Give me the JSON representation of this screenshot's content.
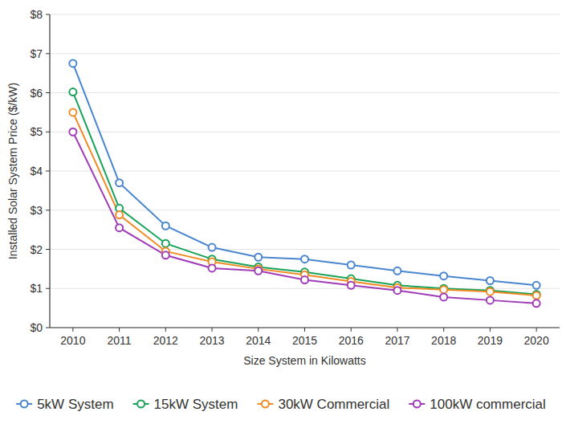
{
  "chart_data": {
    "type": "line",
    "x_label": "Size System in Kilowatts",
    "y_label": "Installed Solar System Price ($/kW)",
    "categories": [
      "2010",
      "2011",
      "2012",
      "2013",
      "2014",
      "2015",
      "2016",
      "2017",
      "2018",
      "2019",
      "2020"
    ],
    "series": [
      {
        "name": "5kW System",
        "color": "#4a86cf",
        "values": [
          6.75,
          3.7,
          2.6,
          2.05,
          1.8,
          1.75,
          1.6,
          1.45,
          1.32,
          1.2,
          1.08
        ]
      },
      {
        "name": "15kW System",
        "color": "#19a35a",
        "values": [
          6.02,
          3.05,
          2.15,
          1.75,
          1.55,
          1.42,
          1.25,
          1.08,
          1.0,
          0.95,
          0.85
        ]
      },
      {
        "name": "30kW Commercial",
        "color": "#f08a24",
        "values": [
          5.5,
          2.88,
          1.95,
          1.68,
          1.5,
          1.35,
          1.18,
          1.02,
          0.97,
          0.92,
          0.82
        ]
      },
      {
        "name": "100kW commercial",
        "color": "#a03cb8",
        "values": [
          5.0,
          2.55,
          1.85,
          1.52,
          1.45,
          1.22,
          1.08,
          0.95,
          0.78,
          0.7,
          0.62
        ]
      }
    ],
    "ylim": [
      0,
      8
    ],
    "yticks": [
      {
        "value": 0,
        "label": "$0"
      },
      {
        "value": 1,
        "label": "$1"
      },
      {
        "value": 2,
        "label": "$2"
      },
      {
        "value": 3,
        "label": "$3"
      },
      {
        "value": 4,
        "label": "$4"
      },
      {
        "value": 5,
        "label": "$5"
      },
      {
        "value": 6,
        "label": "$6"
      },
      {
        "value": 7,
        "label": "$7"
      },
      {
        "value": 8,
        "label": "$8"
      }
    ],
    "grid": true,
    "marker": "circle",
    "legend": "bottom"
  }
}
